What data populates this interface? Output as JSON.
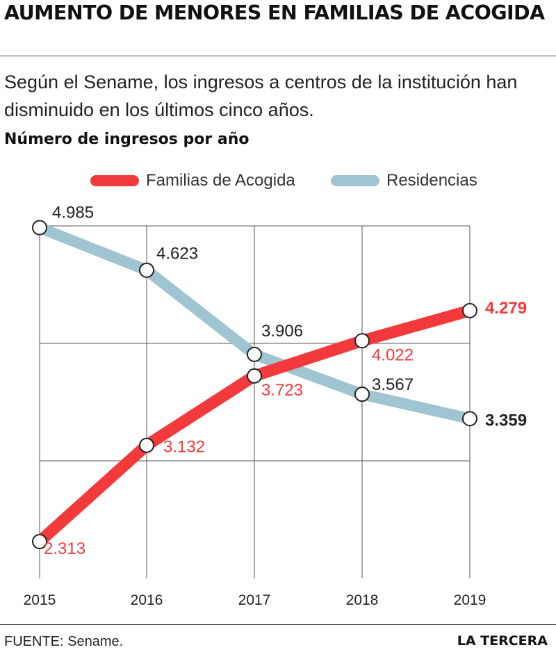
{
  "header": {
    "title": "AUMENTO DE MENORES EN FAMILIAS DE ACOGIDA",
    "subtitle": "Según el Sename, los ingresos a centros de la institución han disminuido en los últimos cinco años.",
    "chart_title": "Número de ingresos por año"
  },
  "footer": {
    "source": "FUENTE: Sename.",
    "brand": "LA TERCERA"
  },
  "colors": {
    "familias": "#f23a3c",
    "residencias": "#9fc4d2",
    "grid": "#555555"
  },
  "chart_data": {
    "type": "line",
    "title": "Número de ingresos por año",
    "x": [
      "2015",
      "2016",
      "2017",
      "2018",
      "2019"
    ],
    "ylim": [
      2000,
      5000
    ],
    "grid": true,
    "legend": "top",
    "series": [
      {
        "name": "Familias de Acogida",
        "values": [
          2313,
          3132,
          3723,
          4022,
          4279
        ],
        "labels": [
          "2.313",
          "3.132",
          "3.723",
          "4.022",
          "4.279"
        ]
      },
      {
        "name": "Residencias",
        "values": [
          4985,
          4623,
          3906,
          3567,
          3359
        ],
        "labels": [
          "4.985",
          "4.623",
          "3.906",
          "3.567",
          "3.359"
        ]
      }
    ]
  }
}
